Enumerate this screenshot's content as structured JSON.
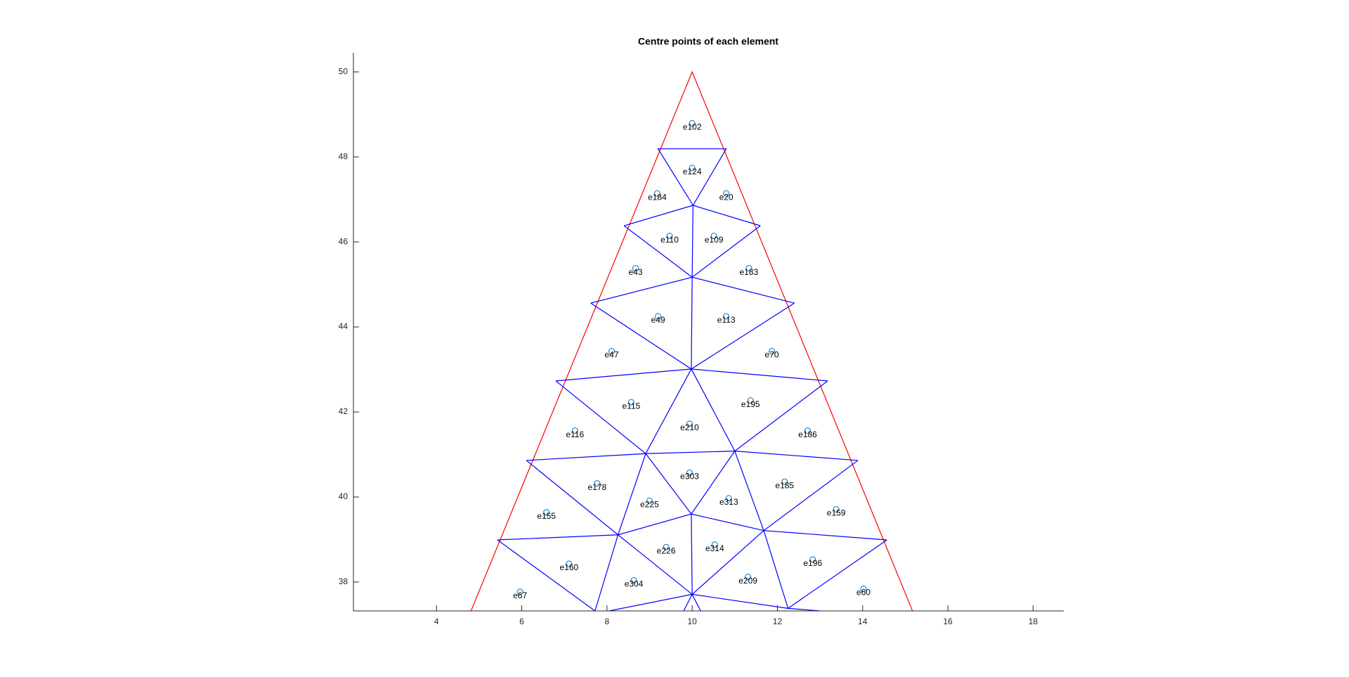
{
  "chart_data": {
    "type": "scatter",
    "title": "Centre points of each element",
    "x": [
      10.0,
      10.0,
      9.18,
      10.8,
      9.47,
      10.51,
      8.67,
      11.33,
      9.2,
      10.8,
      8.11,
      11.87,
      8.57,
      11.37,
      7.25,
      9.94,
      12.71,
      9.94,
      7.77,
      12.17,
      9.0,
      10.86,
      6.58,
      13.38,
      9.39,
      10.53,
      7.11,
      12.83,
      8.63,
      11.31,
      5.96,
      14.02
    ],
    "y": [
      48.79,
      47.74,
      47.14,
      47.14,
      46.14,
      46.14,
      45.38,
      45.38,
      44.25,
      44.25,
      43.43,
      43.43,
      42.23,
      42.27,
      41.56,
      41.72,
      41.56,
      40.57,
      40.32,
      40.36,
      39.91,
      39.97,
      39.64,
      39.71,
      38.82,
      38.88,
      38.43,
      38.53,
      38.04,
      38.12,
      37.77,
      37.84
    ],
    "labels": [
      "e102",
      "e124",
      "e184",
      "e20",
      "e110",
      "e109",
      "e43",
      "e183",
      "e49",
      "e113",
      "e47",
      "e70",
      "e115",
      "e195",
      "e116",
      "e210",
      "e186",
      "e303",
      "e178",
      "e185",
      "e225",
      "e313",
      "e155",
      "e159",
      "e226",
      "e314",
      "e160",
      "e196",
      "e304",
      "e209",
      "e67",
      "e60"
    ],
    "color": "#0072bd",
    "lines": [
      {
        "color": "#ff0000",
        "x": [
          4.81,
          10.0,
          15.17
        ],
        "y": [
          37.32,
          50.0,
          37.32
        ]
      },
      {
        "color": "#0000ff",
        "x": [
          8.4,
          10.02,
          9.2,
          10.8,
          10.02,
          11.6,
          null,
          10.02,
          10.0,
          8.4,
          null,
          11.6,
          10.0,
          7.62,
          null,
          12.4,
          10.0,
          9.98,
          null,
          7.62,
          9.98,
          12.4,
          null,
          6.8,
          9.98,
          13.18,
          null,
          6.8,
          8.91,
          9.98,
          11.0,
          13.18,
          null,
          6.11,
          8.91,
          11.0,
          13.89,
          null,
          6.11,
          8.26,
          8.91,
          9.98,
          11.0,
          11.68,
          13.89,
          null,
          5.43,
          8.26,
          9.98,
          11.68,
          14.57,
          null,
          7.72,
          8.26,
          10.0,
          9.98,
          null,
          10.0,
          11.68,
          12.25,
          14.57,
          null,
          8.05,
          10.0,
          12.25,
          13.0,
          null,
          9.8,
          10.0,
          10.2,
          null,
          5.43,
          7.72
        ],
        "y": [
          46.38,
          46.86,
          48.19,
          48.19,
          46.86,
          46.38,
          null,
          46.86,
          45.17,
          46.38,
          null,
          46.38,
          45.17,
          44.56,
          null,
          44.56,
          45.17,
          43.01,
          null,
          44.56,
          43.01,
          44.56,
          null,
          42.73,
          43.01,
          42.73,
          null,
          42.73,
          41.02,
          43.01,
          41.08,
          42.73,
          null,
          40.86,
          41.02,
          41.08,
          40.86,
          null,
          40.86,
          39.11,
          41.02,
          39.6,
          41.08,
          39.21,
          40.86,
          null,
          38.99,
          39.11,
          39.6,
          39.21,
          38.99,
          null,
          37.32,
          39.11,
          37.71,
          39.6,
          null,
          37.71,
          39.21,
          37.38,
          38.99,
          null,
          37.32,
          37.71,
          37.38,
          37.32,
          null,
          37.32,
          37.71,
          37.32,
          null,
          38.99,
          37.32
        ]
      }
    ],
    "xlim": [
      2.05,
      18.72
    ],
    "ylim": [
      37.32,
      50.45
    ],
    "xticks": [
      4,
      6,
      8,
      10,
      12,
      14,
      16,
      18
    ],
    "yticks": [
      38,
      40,
      42,
      44,
      46,
      48,
      50
    ]
  }
}
